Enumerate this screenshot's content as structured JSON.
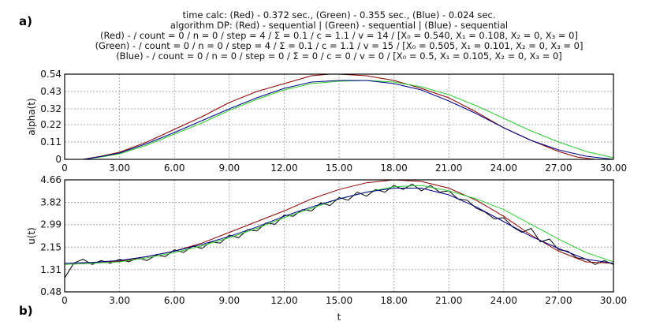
{
  "header": {
    "lines": [
      "time calc:  (Red) - 0.372 sec., (Green) - 0.355 sec., (Blue) - 0.024 sec.",
      "algorithm DP:  (Red) - sequential | (Green) - sequential | (Blue) - sequential",
      "(Red) - / count = 0 / n = 0 / step = 4 / Σ = 0.1 / c = 1.1 / v = 14 / [X₀ = 0.540, X₁ = 0.108, X₂ = 0, X₃ = 0]",
      "(Green) - / count = 0 / n = 0 / step = 4 / Σ = 0.1 / c = 1.1 / v = 15 / [X₀ = 0.505, X₁ = 0.101, X₂ = 0, X₃ = 0]",
      "(Blue) - / count = 0 / n = 0 / step = 0 / Σ = 0 / c = 0 / v = 0 / [X₀ = 0.5, X₁ = 0.105, X₂ = 0, X₃ = 0]"
    ]
  },
  "panels": {
    "a": "a)",
    "b": "b)"
  },
  "chart_data": [
    {
      "type": "line",
      "ylabel": "alpha(t)",
      "xlabel": "",
      "xlim": [
        0,
        30
      ],
      "ylim": [
        0,
        0.54
      ],
      "xticks": [
        "0",
        "3.00",
        "6.00",
        "9.00",
        "12.00",
        "15.00",
        "18.00",
        "21.00",
        "24.00",
        "27.00",
        "30.00"
      ],
      "yticks": [
        "0",
        "0.11",
        "0.22",
        "0.32",
        "0.43",
        "0.54"
      ],
      "grid": true,
      "series": [
        {
          "color": "#8b0000",
          "x": [
            1,
            2,
            3,
            4.5,
            6,
            7.5,
            9,
            10.5,
            12,
            13.5,
            14.5,
            15,
            16.5,
            18,
            19.5,
            21,
            22.5,
            24,
            25.5,
            27,
            28,
            29
          ],
          "y": [
            0,
            0.02,
            0.045,
            0.11,
            0.19,
            0.27,
            0.36,
            0.43,
            0.48,
            0.53,
            0.54,
            0.54,
            0.53,
            0.5,
            0.45,
            0.39,
            0.3,
            0.2,
            0.12,
            0.05,
            0.015,
            0
          ]
        },
        {
          "color": "#2ecc2e",
          "x": [
            1,
            2,
            3,
            4.5,
            6,
            7.5,
            9,
            10.5,
            12,
            13.5,
            15,
            16.5,
            18,
            19.5,
            21,
            22.5,
            24,
            25.5,
            27,
            28.5,
            30
          ],
          "y": [
            0,
            0.015,
            0.035,
            0.09,
            0.16,
            0.23,
            0.31,
            0.38,
            0.44,
            0.48,
            0.495,
            0.5,
            0.49,
            0.46,
            0.41,
            0.34,
            0.26,
            0.18,
            0.11,
            0.05,
            0.01
          ]
        },
        {
          "color": "#00008b",
          "x": [
            1,
            2,
            3,
            4.5,
            6,
            7.5,
            9,
            10.5,
            12,
            13.5,
            15,
            16.5,
            18,
            19.5,
            21,
            22.5,
            24,
            25.5,
            27,
            28.5,
            30
          ],
          "y": [
            0,
            0.018,
            0.04,
            0.1,
            0.17,
            0.245,
            0.32,
            0.39,
            0.45,
            0.49,
            0.5,
            0.5,
            0.48,
            0.44,
            0.37,
            0.29,
            0.2,
            0.12,
            0.06,
            0.02,
            0
          ]
        }
      ]
    },
    {
      "type": "line",
      "ylabel": "u(t)",
      "xlabel": "t",
      "xlim": [
        0,
        30
      ],
      "ylim": [
        0.48,
        4.66
      ],
      "xticks": [
        "0",
        "3.00",
        "6.00",
        "9.00",
        "12.00",
        "15.00",
        "18.00",
        "21.00",
        "24.00",
        "27.00",
        "30.00"
      ],
      "yticks": [
        "0.48",
        "1.31",
        "2.15",
        "2.99",
        "3.82",
        "4.66"
      ],
      "grid": true,
      "series": [
        {
          "color": "#000000",
          "x_start": 0,
          "x_step": 0.5,
          "y": [
            1.0,
            1.55,
            1.7,
            1.5,
            1.65,
            1.55,
            1.7,
            1.6,
            1.75,
            1.65,
            1.85,
            1.8,
            2.05,
            1.95,
            2.2,
            2.1,
            2.35,
            2.3,
            2.6,
            2.5,
            2.8,
            2.75,
            3.05,
            3.0,
            3.35,
            3.3,
            3.55,
            3.5,
            3.8,
            3.7,
            4.0,
            3.9,
            4.2,
            4.05,
            4.3,
            4.2,
            4.45,
            4.3,
            4.5,
            4.25,
            4.45,
            4.2,
            4.25,
            3.95,
            3.9,
            3.6,
            3.45,
            3.2,
            3.25,
            2.9,
            2.7,
            2.85,
            2.35,
            2.45,
            2.05,
            2.0,
            1.75,
            1.7,
            1.5,
            1.65,
            1.5
          ]
        },
        {
          "color": "#8b0000",
          "x": [
            0,
            1.5,
            3,
            4.5,
            6,
            7.5,
            9,
            10.5,
            12,
            13.5,
            15,
            16.5,
            18,
            19.5,
            21,
            22.5,
            24,
            25.5,
            27,
            28.5,
            30
          ],
          "y": [
            1.5,
            1.55,
            1.62,
            1.8,
            2.0,
            2.3,
            2.7,
            3.1,
            3.5,
            3.95,
            4.3,
            4.55,
            4.66,
            4.6,
            4.35,
            3.9,
            3.3,
            2.6,
            2.0,
            1.6,
            1.55
          ]
        },
        {
          "color": "#2ecc2e",
          "x": [
            0,
            1.5,
            3,
            4.5,
            6,
            7.5,
            9,
            10.5,
            12,
            13.5,
            15,
            16.5,
            18,
            19.5,
            21,
            22.5,
            24,
            25.5,
            27,
            28.5,
            30
          ],
          "y": [
            1.5,
            1.55,
            1.6,
            1.75,
            1.95,
            2.2,
            2.5,
            2.85,
            3.25,
            3.6,
            3.95,
            4.2,
            4.4,
            4.45,
            4.25,
            3.95,
            3.55,
            3.0,
            2.45,
            1.95,
            1.6
          ]
        },
        {
          "color": "#00008b",
          "x": [
            0,
            1.5,
            3,
            4.5,
            6,
            7.5,
            9,
            10.5,
            12,
            13.5,
            15,
            16.5,
            18,
            19.5,
            21,
            22.5,
            24,
            25.5,
            27,
            28.5,
            30
          ],
          "y": [
            1.55,
            1.58,
            1.65,
            1.8,
            2.0,
            2.25,
            2.55,
            2.9,
            3.3,
            3.65,
            3.95,
            4.2,
            4.35,
            4.35,
            4.1,
            3.65,
            3.1,
            2.55,
            2.1,
            1.7,
            1.55
          ]
        }
      ]
    }
  ]
}
